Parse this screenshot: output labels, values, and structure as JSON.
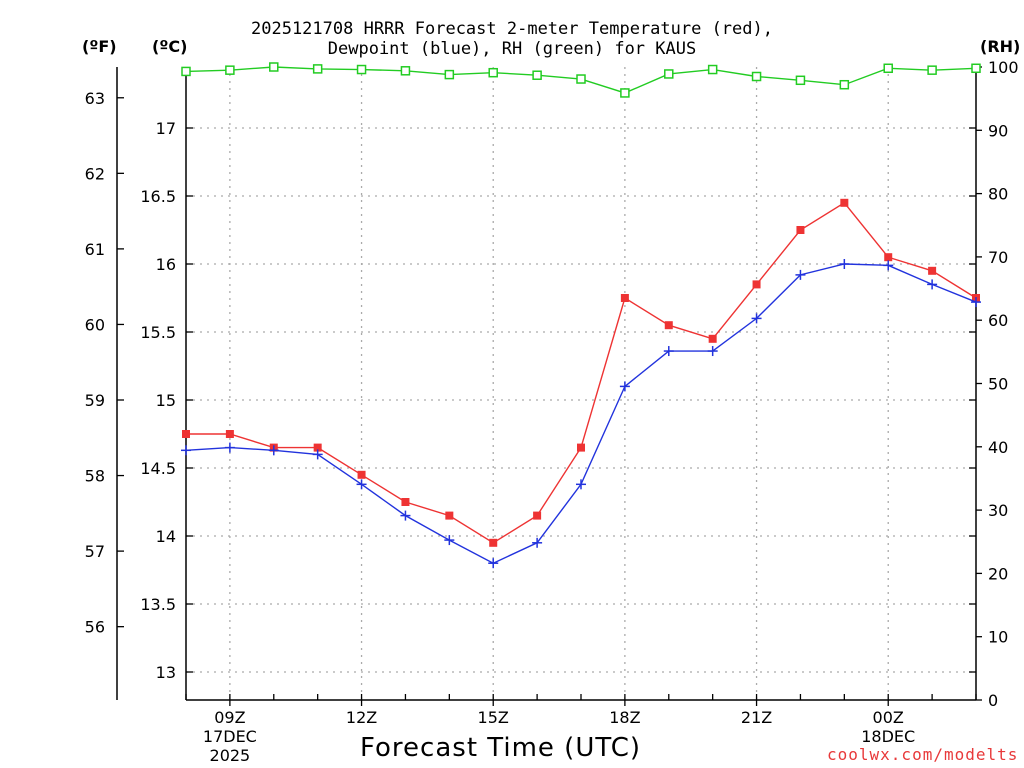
{
  "title": {
    "line1": "2025121708 HRRR Forecast 2-meter Temperature (red),",
    "line2": "Dewpoint (blue), RH (green) for KAUS"
  },
  "axis_units": {
    "fahrenheit": "(ºF)",
    "celsius": "(ºC)",
    "rh": "(RH)"
  },
  "x_axis_label": "Forecast Time (UTC)",
  "credit": "coolwx.com/modelts",
  "colors": {
    "temperature": "#ee3333",
    "dewpoint": "#2233dd",
    "rh": "#22cc22",
    "grid": "#aaaaaa",
    "credit": "#e8393a"
  },
  "chart_data": {
    "type": "line",
    "title": "2025121708 HRRR Forecast 2-meter Temperature (red), Dewpoint (blue), RH (green) for KAUS",
    "xlabel": "Forecast Time (UTC)",
    "x_hours": [
      8,
      9,
      10,
      11,
      12,
      13,
      14,
      15,
      16,
      17,
      18,
      19,
      20,
      21,
      22,
      23,
      24,
      25,
      26
    ],
    "xlim": [
      8,
      26
    ],
    "x_ticks": [
      {
        "hour": 9,
        "lines": [
          "09Z",
          "17DEC",
          "2025"
        ]
      },
      {
        "hour": 12,
        "lines": [
          "12Z"
        ]
      },
      {
        "hour": 15,
        "lines": [
          "15Z"
        ]
      },
      {
        "hour": 18,
        "lines": [
          "18Z"
        ]
      },
      {
        "hour": 21,
        "lines": [
          "21Z"
        ]
      },
      {
        "hour": 24,
        "lines": [
          "00Z",
          "18DEC"
        ]
      }
    ],
    "y_celsius": {
      "ylim": [
        12.8,
        17.5
      ],
      "ticks": [
        "13",
        "13.5",
        "14",
        "14.5",
        "15",
        "15.5",
        "16",
        "16.5",
        "17"
      ]
    },
    "y_fahrenheit": {
      "ticks": [
        "56",
        "57",
        "58",
        "59",
        "60",
        "61",
        "62",
        "63"
      ]
    },
    "y_rh": {
      "ylim": [
        0,
        100
      ],
      "ticks": [
        "0",
        "10",
        "20",
        "30",
        "40",
        "50",
        "60",
        "70",
        "80",
        "90",
        "100"
      ]
    },
    "series": [
      {
        "name": "Temperature (°C)",
        "axis": "celsius",
        "marker": "square",
        "values": [
          14.75,
          14.75,
          14.65,
          14.65,
          14.45,
          14.25,
          14.15,
          13.95,
          14.15,
          14.65,
          15.75,
          15.55,
          15.45,
          15.85,
          16.25,
          16.45,
          16.05,
          15.95,
          15.75
        ]
      },
      {
        "name": "Dewpoint (°C)",
        "axis": "celsius",
        "marker": "plus",
        "values": [
          14.63,
          14.65,
          14.63,
          14.6,
          14.38,
          14.15,
          13.97,
          13.8,
          13.95,
          14.38,
          15.1,
          15.36,
          15.36,
          15.6,
          15.92,
          16.0,
          15.99,
          15.85,
          15.72
        ]
      },
      {
        "name": "RH (%)",
        "axis": "rh",
        "marker": "open-square",
        "values": [
          99.3,
          99.5,
          100,
          99.7,
          99.6,
          99.4,
          98.8,
          99.1,
          98.7,
          98.1,
          95.9,
          98.9,
          99.6,
          98.5,
          97.9,
          97.2,
          99.8,
          99.5,
          99.8
        ]
      }
    ]
  }
}
